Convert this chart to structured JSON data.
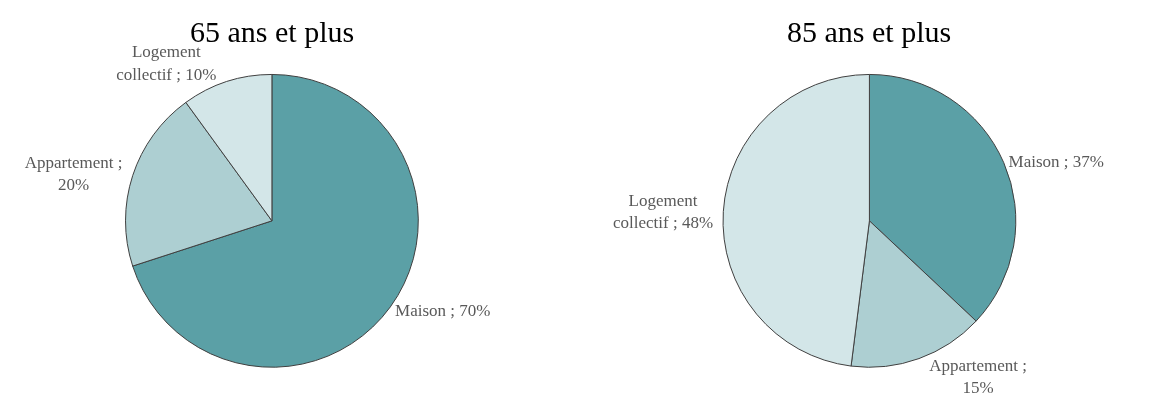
{
  "chart_data": [
    {
      "type": "pie",
      "title": "65 ans et plus",
      "categories": [
        "Maison",
        "Appartement",
        "Logement collectif"
      ],
      "values": [
        70,
        20,
        10
      ],
      "colors": [
        "#5ba0a6",
        "#adcfd2",
        "#d3e6e8"
      ],
      "value_labels": [
        "; 70%",
        "; 20%",
        "; 10%"
      ]
    },
    {
      "type": "pie",
      "title": "85 ans et plus",
      "categories": [
        "Maison",
        "Appartement",
        "Logement collectif"
      ],
      "values": [
        37,
        15,
        48
      ],
      "colors": [
        "#5ba0a6",
        "#adcfd2",
        "#d3e6e8"
      ],
      "value_labels": [
        "; 37%",
        "; 15%",
        "; 48%"
      ]
    }
  ]
}
